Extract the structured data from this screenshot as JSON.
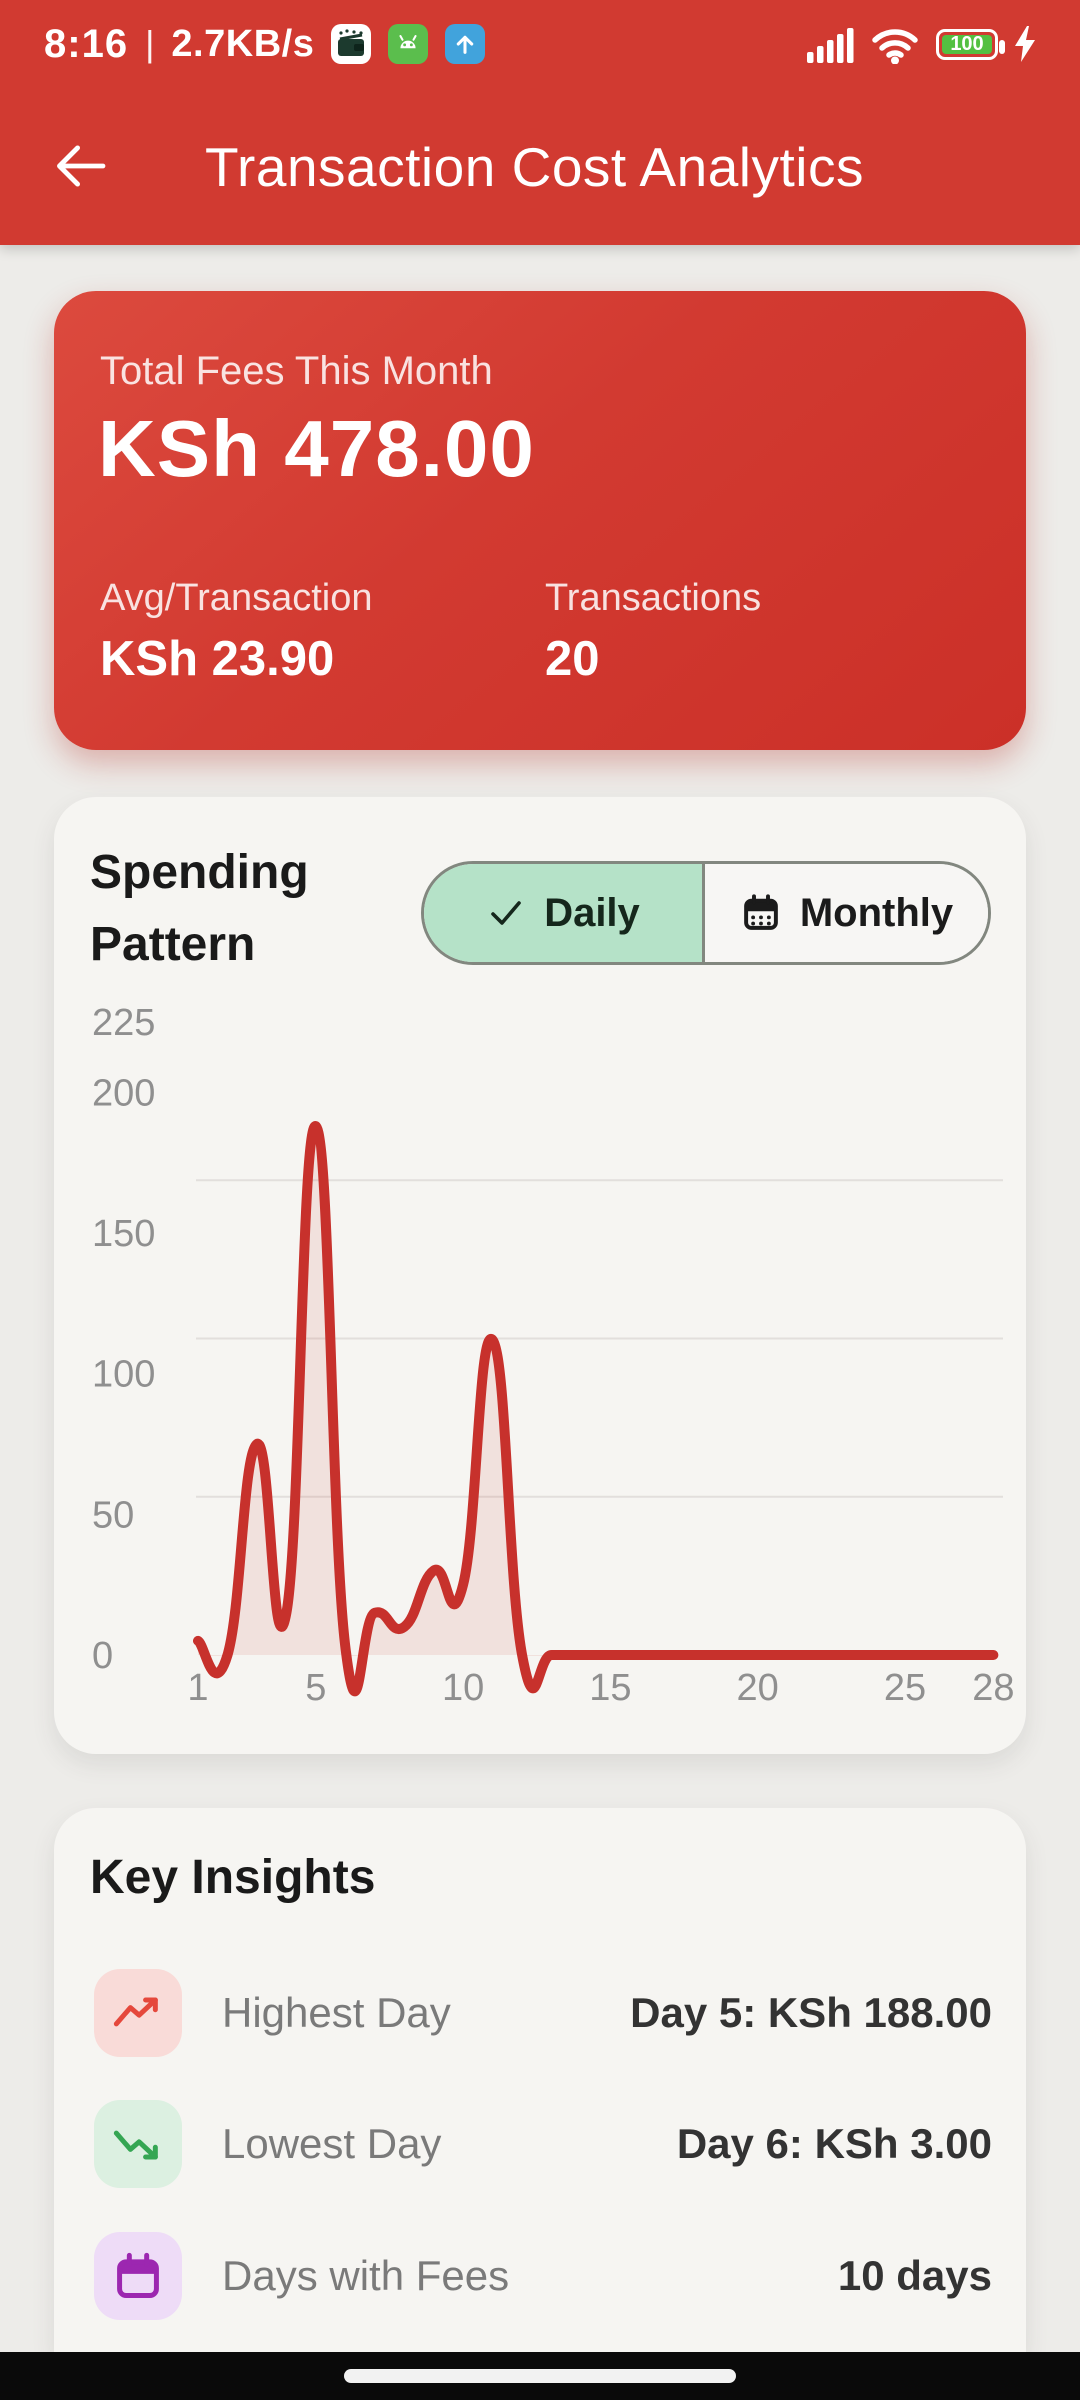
{
  "colors": {
    "header_red": "#D13A31",
    "summary_card_red_top": "#DC4A3E",
    "summary_card_red_bottom": "#CB3028",
    "chart_line_red": "#C7312C",
    "chart_fill_pink": "rgba(199,49,44,0.10)",
    "toggle_selected_green": "#B5E2C8",
    "insight_pink": "#F9DBD8",
    "insight_red": "#E5483C",
    "insight_light_green": "#DCF0E1",
    "insight_green": "#35A653",
    "insight_light_purple": "#EEDCF7",
    "insight_purple": "#9C27B0",
    "battery_green": "#53C041"
  },
  "status_bar": {
    "time": "8:16",
    "separator": "|",
    "network_speed": "2.7KB/s",
    "battery_level": "100",
    "notification_icons": [
      "wallet-app-icon",
      "android-app-icon",
      "upload-arrow-icon"
    ],
    "system_icons": [
      "signal-strength-icon",
      "wifi-icon",
      "battery-icon",
      "charging-bolt-icon"
    ]
  },
  "app_bar": {
    "back_icon": "arrow-left-icon",
    "title": "Transaction Cost Analytics"
  },
  "summary_card": {
    "label": "Total Fees This Month",
    "total": "KSh 478.00",
    "columns": [
      {
        "label": "Avg/Transaction",
        "value": "KSh 23.90"
      },
      {
        "label": "Transactions",
        "value": "20"
      }
    ]
  },
  "spending_card": {
    "title_line1": "Spending",
    "title_line2": "Pattern",
    "toggle": {
      "options": [
        {
          "label": "Daily",
          "icon": "check-icon",
          "selected": true
        },
        {
          "label": "Monthly",
          "icon": "calendar-icon",
          "selected": false
        }
      ]
    }
  },
  "chart_data": {
    "type": "line",
    "title": "Spending Pattern (Daily fees, KSh)",
    "x": [
      1,
      2,
      3,
      4,
      5,
      6,
      7,
      8,
      9,
      10,
      11,
      12,
      13,
      14,
      15,
      16,
      17,
      18,
      19,
      20,
      21,
      22,
      23,
      24,
      25,
      26,
      27,
      28
    ],
    "series": [
      {
        "name": "daily_fees",
        "values": [
          5,
          0,
          75,
          15,
          188,
          3,
          15,
          10,
          30,
          25,
          112,
          0,
          0,
          0,
          0,
          0,
          0,
          0,
          0,
          0,
          0,
          0,
          0,
          0,
          0,
          0,
          0,
          0
        ]
      }
    ],
    "x_ticks": [
      1,
      5,
      10,
      15,
      20,
      25,
      28
    ],
    "y_ticks": [
      0,
      50,
      100,
      150,
      200,
      225
    ],
    "gridline_values": [
      56.25,
      112.5,
      168.75
    ],
    "xlim": [
      1,
      28
    ],
    "ylim": [
      0,
      225
    ],
    "grid": "horizontal-only",
    "legend": "none",
    "line_color": "#C7312C",
    "fill_color": "rgba(199,49,44,0.10)",
    "smooth": true
  },
  "insights_card": {
    "title": "Key Insights",
    "rows": [
      {
        "icon": "trending-up-icon",
        "label": "Highest Day",
        "value": "Day 5: KSh 188.00"
      },
      {
        "icon": "trending-down-icon",
        "label": "Lowest Day",
        "value": "Day 6: KSh 3.00"
      },
      {
        "icon": "calendar-icon",
        "label": "Days with Fees",
        "value": "10 days"
      }
    ]
  },
  "nav_bar": {
    "home_indicator": "pill"
  }
}
